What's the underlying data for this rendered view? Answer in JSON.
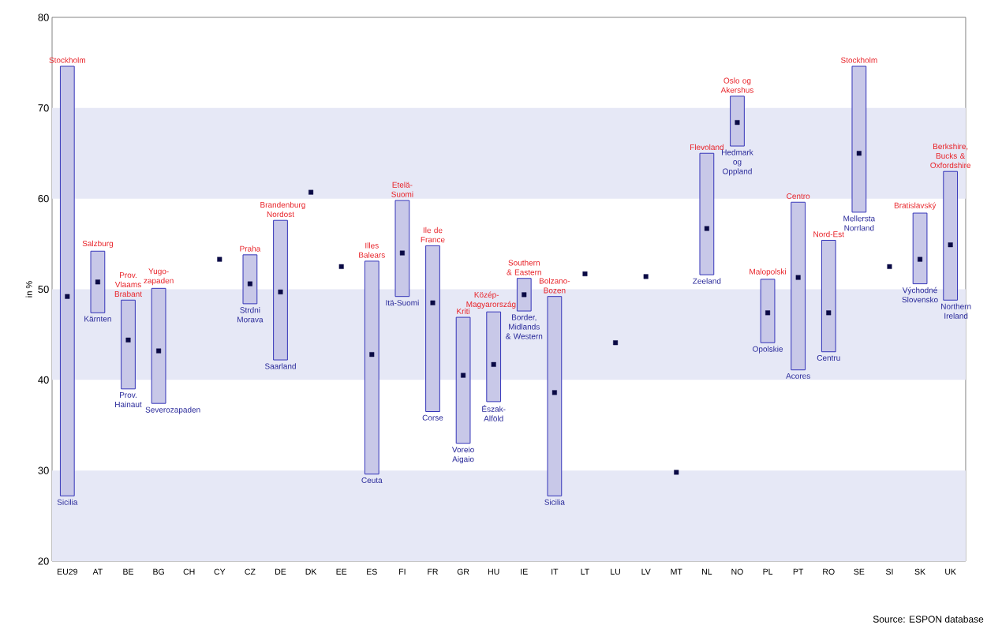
{
  "chart_data": {
    "type": "bar",
    "ylabel": "in %",
    "categories": [
      "EU29",
      "AT",
      "BE",
      "BG",
      "CH",
      "CY",
      "CZ",
      "DE",
      "DK",
      "EE",
      "ES",
      "FI",
      "FR",
      "GR",
      "HU",
      "IE",
      "IT",
      "LT",
      "LU",
      "LV",
      "MT",
      "NL",
      "NO",
      "PL",
      "PT",
      "RO",
      "SE",
      "SI",
      "SK",
      "UK"
    ],
    "series": [
      {
        "type": "bar",
        "color": "#c8c8e8",
        "base": [
          27.2,
          47.4,
          39.0,
          37.4,
          null,
          null,
          48.4,
          42.2,
          null,
          null,
          29.6,
          49.2,
          36.5,
          33.0,
          37.6,
          47.6,
          27.2,
          null,
          null,
          null,
          null,
          51.6,
          65.8,
          44.1,
          41.1,
          43.1,
          58.5,
          null,
          50.6,
          48.8
        ],
        "values": [
          47.4,
          6.8,
          9.8,
          12.7,
          null,
          null,
          5.4,
          15.4,
          null,
          null,
          23.5,
          10.6,
          18.3,
          13.9,
          9.9,
          3.6,
          22.0,
          null,
          null,
          null,
          null,
          13.4,
          5.5,
          7.0,
          18.5,
          12.3,
          16.1,
          null,
          7.8,
          14.2
        ]
      },
      {
        "type": "scatter",
        "color": "#0a0a45",
        "x": [
          "EU29",
          "AT",
          "BE",
          "BG",
          "CH",
          "CY",
          "CZ",
          "DE",
          "DK",
          "EE",
          "ES",
          "FI",
          "FR",
          "GR",
          "HU",
          "IE",
          "IT",
          "LT",
          "LU",
          "LV",
          "MT",
          "NL",
          "NO",
          "PL",
          "PT",
          "RO",
          "SE",
          "SI",
          "SK",
          "UK"
        ],
        "values": [
          49.2,
          50.8,
          44.4,
          43.2,
          null,
          53.3,
          50.6,
          49.7,
          60.7,
          52.5,
          42.8,
          54.0,
          48.5,
          40.5,
          41.7,
          49.4,
          38.6,
          51.7,
          44.1,
          51.4,
          29.8,
          56.7,
          68.4,
          47.4,
          51.3,
          47.4,
          65.0,
          52.5,
          53.3,
          54.9
        ]
      }
    ],
    "marker": "square",
    "ylim": [
      20,
      80
    ],
    "yticks": [
      20,
      30,
      40,
      50,
      60,
      70,
      80
    ],
    "bands": [
      {
        "axis": "y",
        "from": 20,
        "to": 30,
        "color": "#e6e8f6"
      },
      {
        "axis": "y",
        "from": 40,
        "to": 50,
        "color": "#e6e8f6"
      },
      {
        "axis": "y",
        "from": 60,
        "to": 70,
        "color": "#e6e8f6"
      }
    ],
    "annotations": [
      {
        "text": "Stockholm",
        "x": "EU29",
        "y": 74.6
      },
      {
        "text": "Sicilia",
        "x": "EU29",
        "y": 27.2
      },
      {
        "text": "Salzburg",
        "x": "AT",
        "y": 54.2
      },
      {
        "text": "Kärnten",
        "x": "AT",
        "y": 47.4
      },
      {
        "text": "Prov. Vlaams Brabant",
        "x": "BE",
        "y": 48.8
      },
      {
        "text": "Prov. Hainaut",
        "x": "BE",
        "y": 39.0
      },
      {
        "text": "Yugo-zapaden",
        "x": "BG",
        "y": 50.1
      },
      {
        "text": "Severozapaden",
        "x": "BG",
        "y": 37.4
      },
      {
        "text": "Praha",
        "x": "CZ",
        "y": 53.8
      },
      {
        "text": "Strdni Morava",
        "x": "CZ",
        "y": 48.4
      },
      {
        "text": "Brandenburg Nordost",
        "x": "DE",
        "y": 57.6
      },
      {
        "text": "Saarland",
        "x": "DE",
        "y": 42.2
      },
      {
        "text": "Illes Balears",
        "x": "ES",
        "y": 53.1
      },
      {
        "text": "Ceuta",
        "x": "ES",
        "y": 29.6
      },
      {
        "text": "Etelä-Suomi",
        "x": "FI",
        "y": 59.8
      },
      {
        "text": "Itä-Suomi",
        "x": "FI",
        "y": 49.2
      },
      {
        "text": "Ile de France",
        "x": "FR",
        "y": 54.8
      },
      {
        "text": "Corse",
        "x": "FR",
        "y": 36.5
      },
      {
        "text": "Kriti",
        "x": "GR",
        "y": 46.9
      },
      {
        "text": "Voreio Aigaio",
        "x": "GR",
        "y": 33.0
      },
      {
        "text": "Közép-Magyarország",
        "x": "HU",
        "y": 47.5
      },
      {
        "text": "Észak-Alföld",
        "x": "HU",
        "y": 37.6
      },
      {
        "text": "Southern & Eastern",
        "x": "IE",
        "y": 51.2
      },
      {
        "text": "Border, Midlands & Western",
        "x": "IE",
        "y": 47.6
      },
      {
        "text": "Bolzano-Bozen",
        "x": "IT",
        "y": 49.2
      },
      {
        "text": "Sicilia",
        "x": "IT",
        "y": 27.2
      },
      {
        "text": "Flevoland",
        "x": "NL",
        "y": 65.0
      },
      {
        "text": "Zeeland",
        "x": "NL",
        "y": 51.6
      },
      {
        "text": "Oslo og Akershus",
        "x": "NO",
        "y": 71.3
      },
      {
        "text": "Hedmark og Oppland",
        "x": "NO",
        "y": 65.8
      },
      {
        "text": "Malopolski",
        "x": "PL",
        "y": 51.1
      },
      {
        "text": "Opolskie",
        "x": "PL",
        "y": 44.1
      },
      {
        "text": "Centro",
        "x": "PT",
        "y": 59.6
      },
      {
        "text": "Acores",
        "x": "PT",
        "y": 41.1
      },
      {
        "text": "Nord-Est",
        "x": "RO",
        "y": 55.4
      },
      {
        "text": "Centru",
        "x": "RO",
        "y": 43.1
      },
      {
        "text": "Stockholm",
        "x": "SE",
        "y": 74.6
      },
      {
        "text": "Mellersta Norrland",
        "x": "SE",
        "y": 58.5
      },
      {
        "text": "Bratislavský",
        "x": "SK",
        "y": 58.4
      },
      {
        "text": "Východné Slovensko",
        "x": "SK",
        "y": 50.6
      },
      {
        "text": "Berkshire, Bucks & Oxfordshire",
        "x": "UK",
        "y": 63.0
      },
      {
        "text": "Northern Ireland",
        "x": "UK",
        "y": 48.8
      },
      "Source: ESPON database"
    ]
  }
}
